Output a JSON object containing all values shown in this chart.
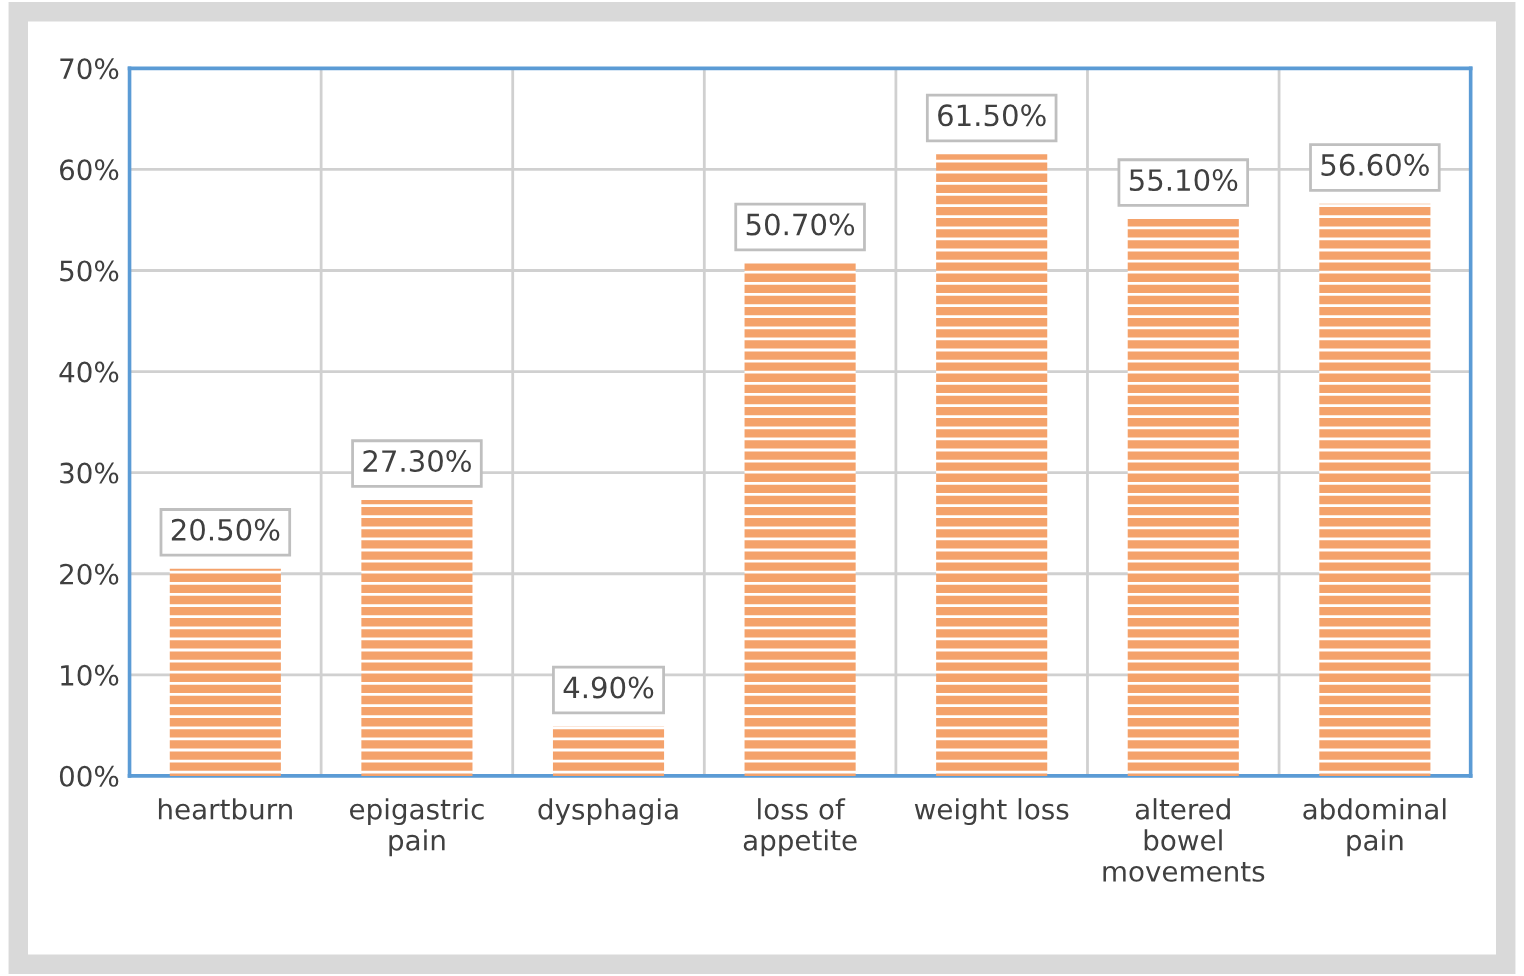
{
  "chart_data": {
    "type": "bar",
    "categories": [
      "heartburn",
      "epigastric\npain",
      "dysphagia",
      "loss of\nappetite",
      "weight loss",
      "altered\nbowel\nmovements",
      "abdominal\npain"
    ],
    "values": [
      20.5,
      27.3,
      4.9,
      50.7,
      61.5,
      55.1,
      56.6
    ],
    "value_labels": [
      "20.50%",
      "27.30%",
      "4.90%",
      "50.70%",
      "61.50%",
      "55.10%",
      "56.60%"
    ],
    "color": "#f4a26b",
    "ylim": [
      0,
      70
    ],
    "yticks": [
      {
        "value": 0,
        "label": "00%"
      },
      {
        "value": 10,
        "label": "10%"
      },
      {
        "value": 20,
        "label": "20%"
      },
      {
        "value": 30,
        "label": "30%"
      },
      {
        "value": 40,
        "label": "40%"
      },
      {
        "value": 50,
        "label": "50%"
      },
      {
        "value": 60,
        "label": "60%"
      },
      {
        "value": 70,
        "label": "70%"
      }
    ],
    "grid": true
  }
}
